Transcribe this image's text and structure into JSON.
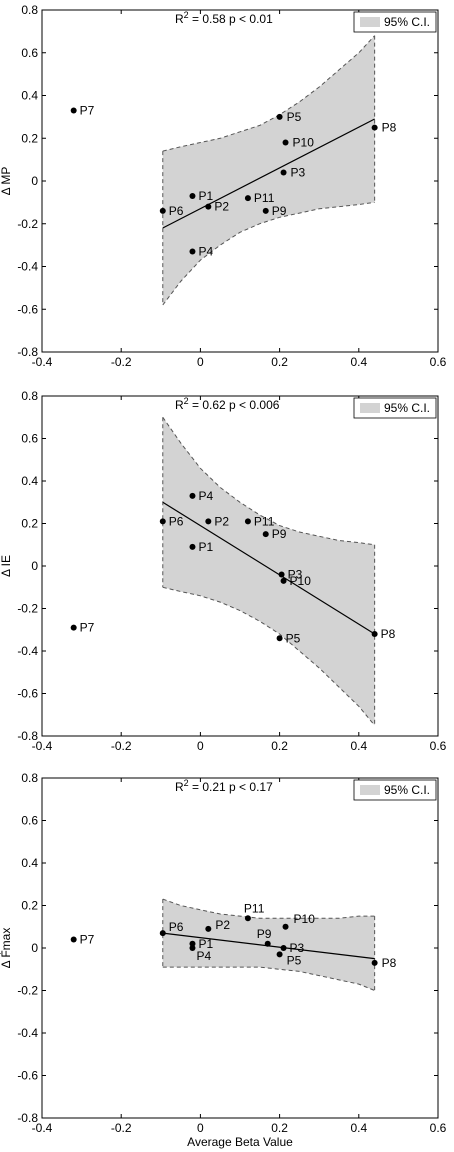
{
  "chart_data": [
    {
      "type": "scatter",
      "ylabel": "Δ MP",
      "xlabel": "",
      "title": {
        "prefix": "R",
        "sup": "2",
        "text": " = 0.58   p < 0.01"
      },
      "legend": {
        "label": "95% C.I.",
        "position": "top-right"
      },
      "xlim": [
        -0.4,
        0.6
      ],
      "ylim": [
        -0.8,
        0.8
      ],
      "x_ticks": [
        "-0.4",
        "-0.2",
        "0",
        "0.2",
        "0.4",
        "0.6"
      ],
      "y_ticks": [
        "0.8",
        "0.6",
        "0.4",
        "0.2",
        "0",
        "-0.2",
        "-0.4",
        "-0.6",
        "-0.8"
      ],
      "points": [
        {
          "label": "P1",
          "x": -0.02,
          "y": -0.07
        },
        {
          "label": "P2",
          "x": 0.02,
          "y": -0.12
        },
        {
          "label": "P3",
          "x": 0.21,
          "y": 0.04
        },
        {
          "label": "P4",
          "x": -0.02,
          "y": -0.33
        },
        {
          "label": "P5",
          "x": 0.2,
          "y": 0.3
        },
        {
          "label": "P6",
          "x": -0.095,
          "y": -0.14
        },
        {
          "label": "P7",
          "x": -0.32,
          "y": 0.33
        },
        {
          "label": "P8",
          "x": 0.44,
          "y": 0.25
        },
        {
          "label": "P9",
          "x": 0.165,
          "y": -0.14
        },
        {
          "label": "P10",
          "x": 0.215,
          "y": 0.18
        },
        {
          "label": "P11",
          "x": 0.12,
          "y": -0.08
        }
      ],
      "fit": {
        "x": [
          -0.095,
          0.44
        ],
        "y": [
          -0.22,
          0.29
        ]
      },
      "ci_upper": {
        "x": [
          -0.095,
          -0.05,
          0,
          0.05,
          0.1,
          0.15,
          0.2,
          0.25,
          0.3,
          0.35,
          0.4,
          0.44
        ],
        "y": [
          0.14,
          0.16,
          0.18,
          0.2,
          0.23,
          0.26,
          0.31,
          0.37,
          0.44,
          0.52,
          0.6,
          0.68
        ]
      },
      "ci_lower": {
        "x": [
          -0.095,
          -0.05,
          0,
          0.05,
          0.1,
          0.15,
          0.2,
          0.25,
          0.3,
          0.35,
          0.4,
          0.44
        ],
        "y": [
          -0.58,
          -0.47,
          -0.37,
          -0.3,
          -0.24,
          -0.2,
          -0.17,
          -0.15,
          -0.13,
          -0.12,
          -0.11,
          -0.1
        ]
      }
    },
    {
      "type": "scatter",
      "ylabel": "Δ IE",
      "xlabel": "",
      "title": {
        "prefix": "R",
        "sup": "2",
        "text": " = 0.62 p < 0.006"
      },
      "legend": {
        "label": "95% C.I.",
        "position": "top-right"
      },
      "xlim": [
        -0.4,
        0.6
      ],
      "ylim": [
        -0.8,
        0.8
      ],
      "x_ticks": [
        "-0.4",
        "-0.2",
        "0",
        "0.2",
        "0.4",
        "0.6"
      ],
      "y_ticks": [
        "0.8",
        "0.6",
        "0.4",
        "0.2",
        "0",
        "-0.2",
        "-0.4",
        "-0.6",
        "-0.8"
      ],
      "points": [
        {
          "label": "P1",
          "x": -0.02,
          "y": 0.09
        },
        {
          "label": "P2",
          "x": 0.02,
          "y": 0.21
        },
        {
          "label": "P3",
          "x": 0.205,
          "y": -0.04
        },
        {
          "label": "P4",
          "x": -0.02,
          "y": 0.33
        },
        {
          "label": "P5",
          "x": 0.2,
          "y": -0.34
        },
        {
          "label": "P6",
          "x": -0.095,
          "y": 0.21
        },
        {
          "label": "P7",
          "x": -0.32,
          "y": -0.29
        },
        {
          "label": "P8",
          "x": 0.44,
          "y": -0.32
        },
        {
          "label": "P9",
          "x": 0.165,
          "y": 0.15
        },
        {
          "label": "P10",
          "x": 0.21,
          "y": -0.07
        },
        {
          "label": "P11",
          "x": 0.12,
          "y": 0.21
        }
      ],
      "fit": {
        "x": [
          -0.095,
          0.44
        ],
        "y": [
          0.3,
          -0.32
        ]
      },
      "ci_upper": {
        "x": [
          -0.095,
          -0.05,
          0,
          0.05,
          0.1,
          0.15,
          0.2,
          0.25,
          0.3,
          0.35,
          0.4,
          0.44
        ],
        "y": [
          0.7,
          0.58,
          0.46,
          0.37,
          0.3,
          0.24,
          0.19,
          0.16,
          0.14,
          0.12,
          0.11,
          0.1
        ]
      },
      "ci_lower": {
        "x": [
          -0.095,
          -0.05,
          0,
          0.05,
          0.1,
          0.15,
          0.2,
          0.25,
          0.3,
          0.35,
          0.4,
          0.44
        ],
        "y": [
          -0.1,
          -0.12,
          -0.14,
          -0.17,
          -0.21,
          -0.26,
          -0.32,
          -0.4,
          -0.48,
          -0.57,
          -0.66,
          -0.75
        ]
      }
    },
    {
      "type": "scatter",
      "ylabel": "Δ Ḟmax",
      "xlabel": "Average Beta Value",
      "title": {
        "prefix": "R",
        "sup": "2",
        "text": " = 0.21   p < 0.17"
      },
      "legend": {
        "label": "95% C.I.",
        "position": "top-right"
      },
      "xlim": [
        -0.4,
        0.6
      ],
      "ylim": [
        -0.8,
        0.8
      ],
      "x_ticks": [
        "-0.4",
        "-0.2",
        "0",
        "0.2",
        "0.4",
        "0.6"
      ],
      "y_ticks": [
        "0.8",
        "0.6",
        "0.4",
        "0.2",
        "0",
        "-0.2",
        "-0.4",
        "-0.6",
        "-0.8"
      ],
      "points": [
        {
          "label": "P1",
          "x": -0.02,
          "y": 0.02
        },
        {
          "label": "P2",
          "x": 0.02,
          "y": 0.09
        },
        {
          "label": "P3",
          "x": 0.21,
          "y": 0.0
        },
        {
          "label": "P4",
          "x": -0.02,
          "y": 0.0
        },
        {
          "label": "P5",
          "x": 0.2,
          "y": -0.03
        },
        {
          "label": "P6",
          "x": -0.095,
          "y": 0.07
        },
        {
          "label": "P7",
          "x": -0.32,
          "y": 0.04
        },
        {
          "label": "P8",
          "x": 0.44,
          "y": -0.07
        },
        {
          "label": "P9",
          "x": 0.17,
          "y": 0.02
        },
        {
          "label": "P10",
          "x": 0.215,
          "y": 0.1
        },
        {
          "label": "P11",
          "x": 0.12,
          "y": 0.14
        }
      ],
      "fit": {
        "x": [
          -0.095,
          0.44
        ],
        "y": [
          0.07,
          -0.05
        ]
      },
      "ci_upper": {
        "x": [
          -0.095,
          -0.05,
          0,
          0.05,
          0.1,
          0.15,
          0.2,
          0.25,
          0.3,
          0.35,
          0.4,
          0.44
        ],
        "y": [
          0.23,
          0.2,
          0.18,
          0.16,
          0.15,
          0.14,
          0.14,
          0.14,
          0.14,
          0.14,
          0.15,
          0.15
        ]
      },
      "ci_lower": {
        "x": [
          -0.095,
          -0.05,
          0,
          0.05,
          0.1,
          0.15,
          0.2,
          0.25,
          0.3,
          0.35,
          0.4,
          0.44
        ],
        "y": [
          -0.09,
          -0.09,
          -0.09,
          -0.09,
          -0.09,
          -0.09,
          -0.1,
          -0.11,
          -0.13,
          -0.15,
          -0.17,
          -0.2
        ]
      }
    }
  ]
}
